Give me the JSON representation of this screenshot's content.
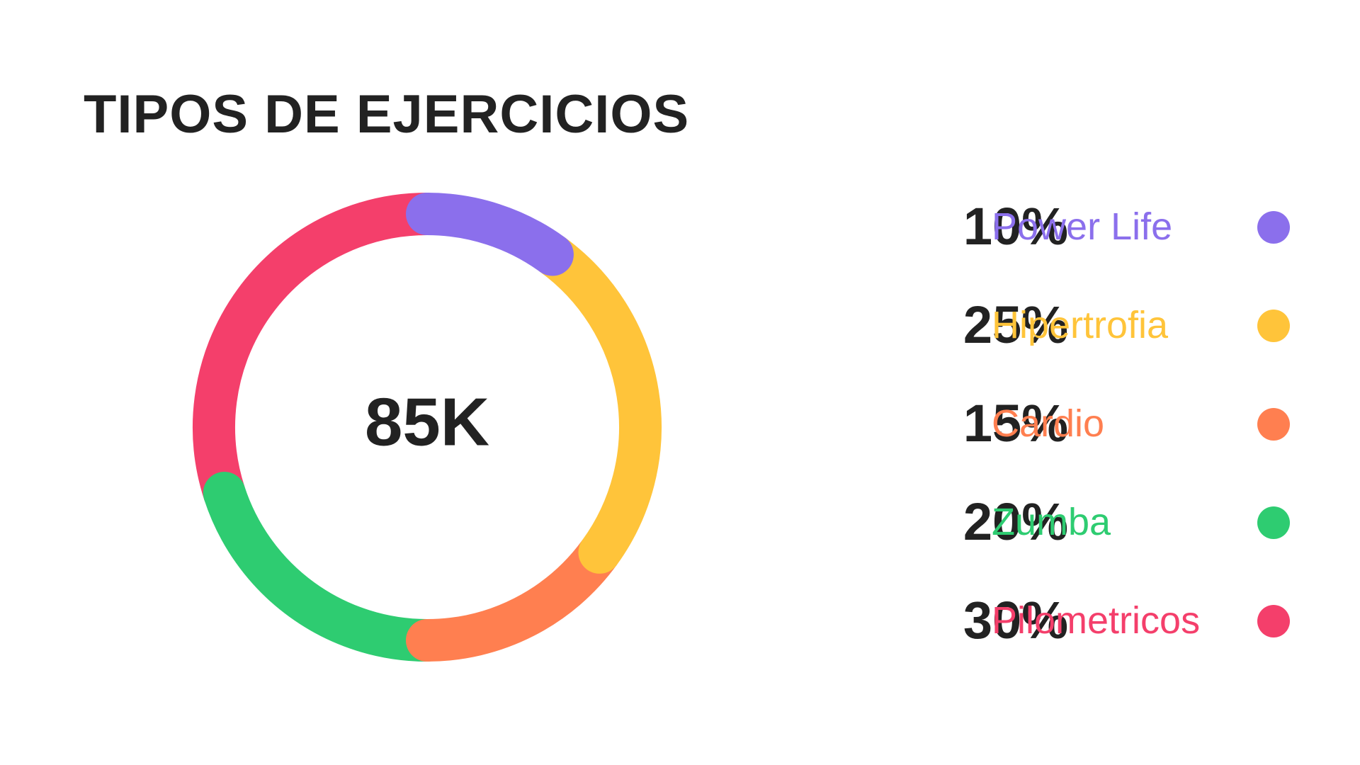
{
  "chart_data": {
    "type": "pie",
    "title": "TIPOS DE EJERCICIOS",
    "center_label": "85K",
    "legend_position": "right",
    "slices": [
      {
        "label": "Power Life",
        "value": 10,
        "display": "10%",
        "color": "#8B6FEC"
      },
      {
        "label": "Hipertrofia",
        "value": 25,
        "display": "25%",
        "color": "#FFC43A"
      },
      {
        "label": "Cardio",
        "value": 15,
        "display": "15%",
        "color": "#FF7F50"
      },
      {
        "label": "Zumba",
        "value": 20,
        "display": "20%",
        "color": "#2ECC71"
      },
      {
        "label": "Pilometricos",
        "value": 30,
        "display": "30%",
        "color": "#F43F6B"
      }
    ]
  }
}
